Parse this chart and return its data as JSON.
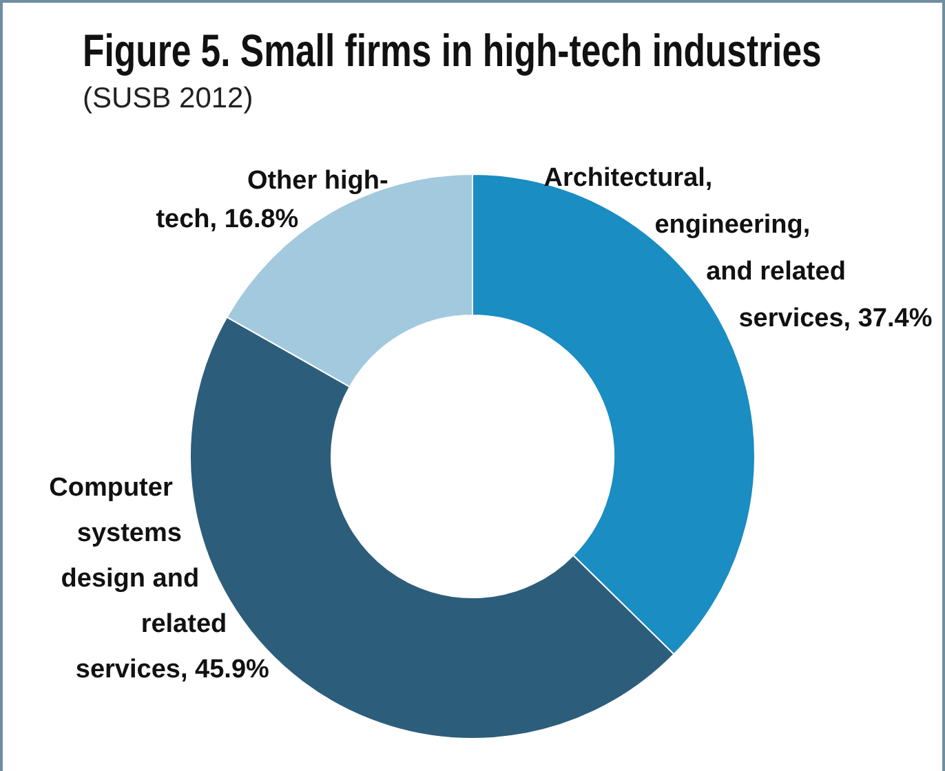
{
  "chart_data": {
    "type": "donut",
    "title": "Figure 5. Small firms in high-tech industries",
    "subtitle": "(SUSB 2012)",
    "categories": [
      "Architectural, engineering, and related services",
      "Computer systems design and related services",
      "Other high-tech"
    ],
    "values": [
      37.4,
      45.9,
      16.8
    ],
    "value_labels": [
      "37.4%",
      "45.9%",
      "16.8%"
    ],
    "colors": [
      "#1a8dc2",
      "#2c5e7b",
      "#a2c9de"
    ],
    "legend": false
  }
}
